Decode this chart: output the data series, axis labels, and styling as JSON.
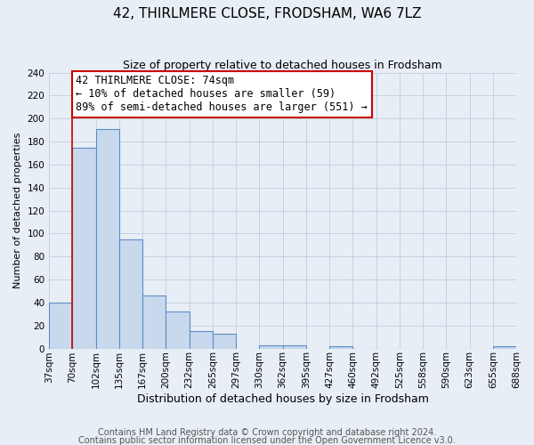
{
  "title": "42, THIRLMERE CLOSE, FRODSHAM, WA6 7LZ",
  "subtitle": "Size of property relative to detached houses in Frodsham",
  "xlabel": "Distribution of detached houses by size in Frodsham",
  "ylabel": "Number of detached properties",
  "bin_labels": [
    "37sqm",
    "70sqm",
    "102sqm",
    "135sqm",
    "167sqm",
    "200sqm",
    "232sqm",
    "265sqm",
    "297sqm",
    "330sqm",
    "362sqm",
    "395sqm",
    "427sqm",
    "460sqm",
    "492sqm",
    "525sqm",
    "558sqm",
    "590sqm",
    "623sqm",
    "655sqm",
    "688sqm"
  ],
  "bar_heights": [
    40,
    175,
    191,
    95,
    46,
    32,
    15,
    13,
    0,
    3,
    3,
    0,
    2,
    0,
    0,
    0,
    0,
    0,
    0,
    2
  ],
  "bar_color": "#c9d9ed",
  "bar_edge_color": "#5b8cc8",
  "ylim": [
    0,
    240
  ],
  "yticks": [
    0,
    20,
    40,
    60,
    80,
    100,
    120,
    140,
    160,
    180,
    200,
    220,
    240
  ],
  "property_line_x": 1.0,
  "property_line_color": "#cc0000",
  "annotation_title": "42 THIRLMERE CLOSE: 74sqm",
  "annotation_line1": "← 10% of detached houses are smaller (59)",
  "annotation_line2": "89% of semi-detached houses are larger (551) →",
  "annotation_box_color": "#ffffff",
  "annotation_box_edge": "#cc0000",
  "background_color": "#e8eef5",
  "footer1": "Contains HM Land Registry data © Crown copyright and database right 2024.",
  "footer2": "Contains public sector information licensed under the Open Government Licence v3.0.",
  "title_fontsize": 11,
  "subtitle_fontsize": 9,
  "ylabel_fontsize": 8,
  "xlabel_fontsize": 9,
  "tick_fontsize": 7.5,
  "footer_fontsize": 7,
  "ann_fontsize": 8.5
}
